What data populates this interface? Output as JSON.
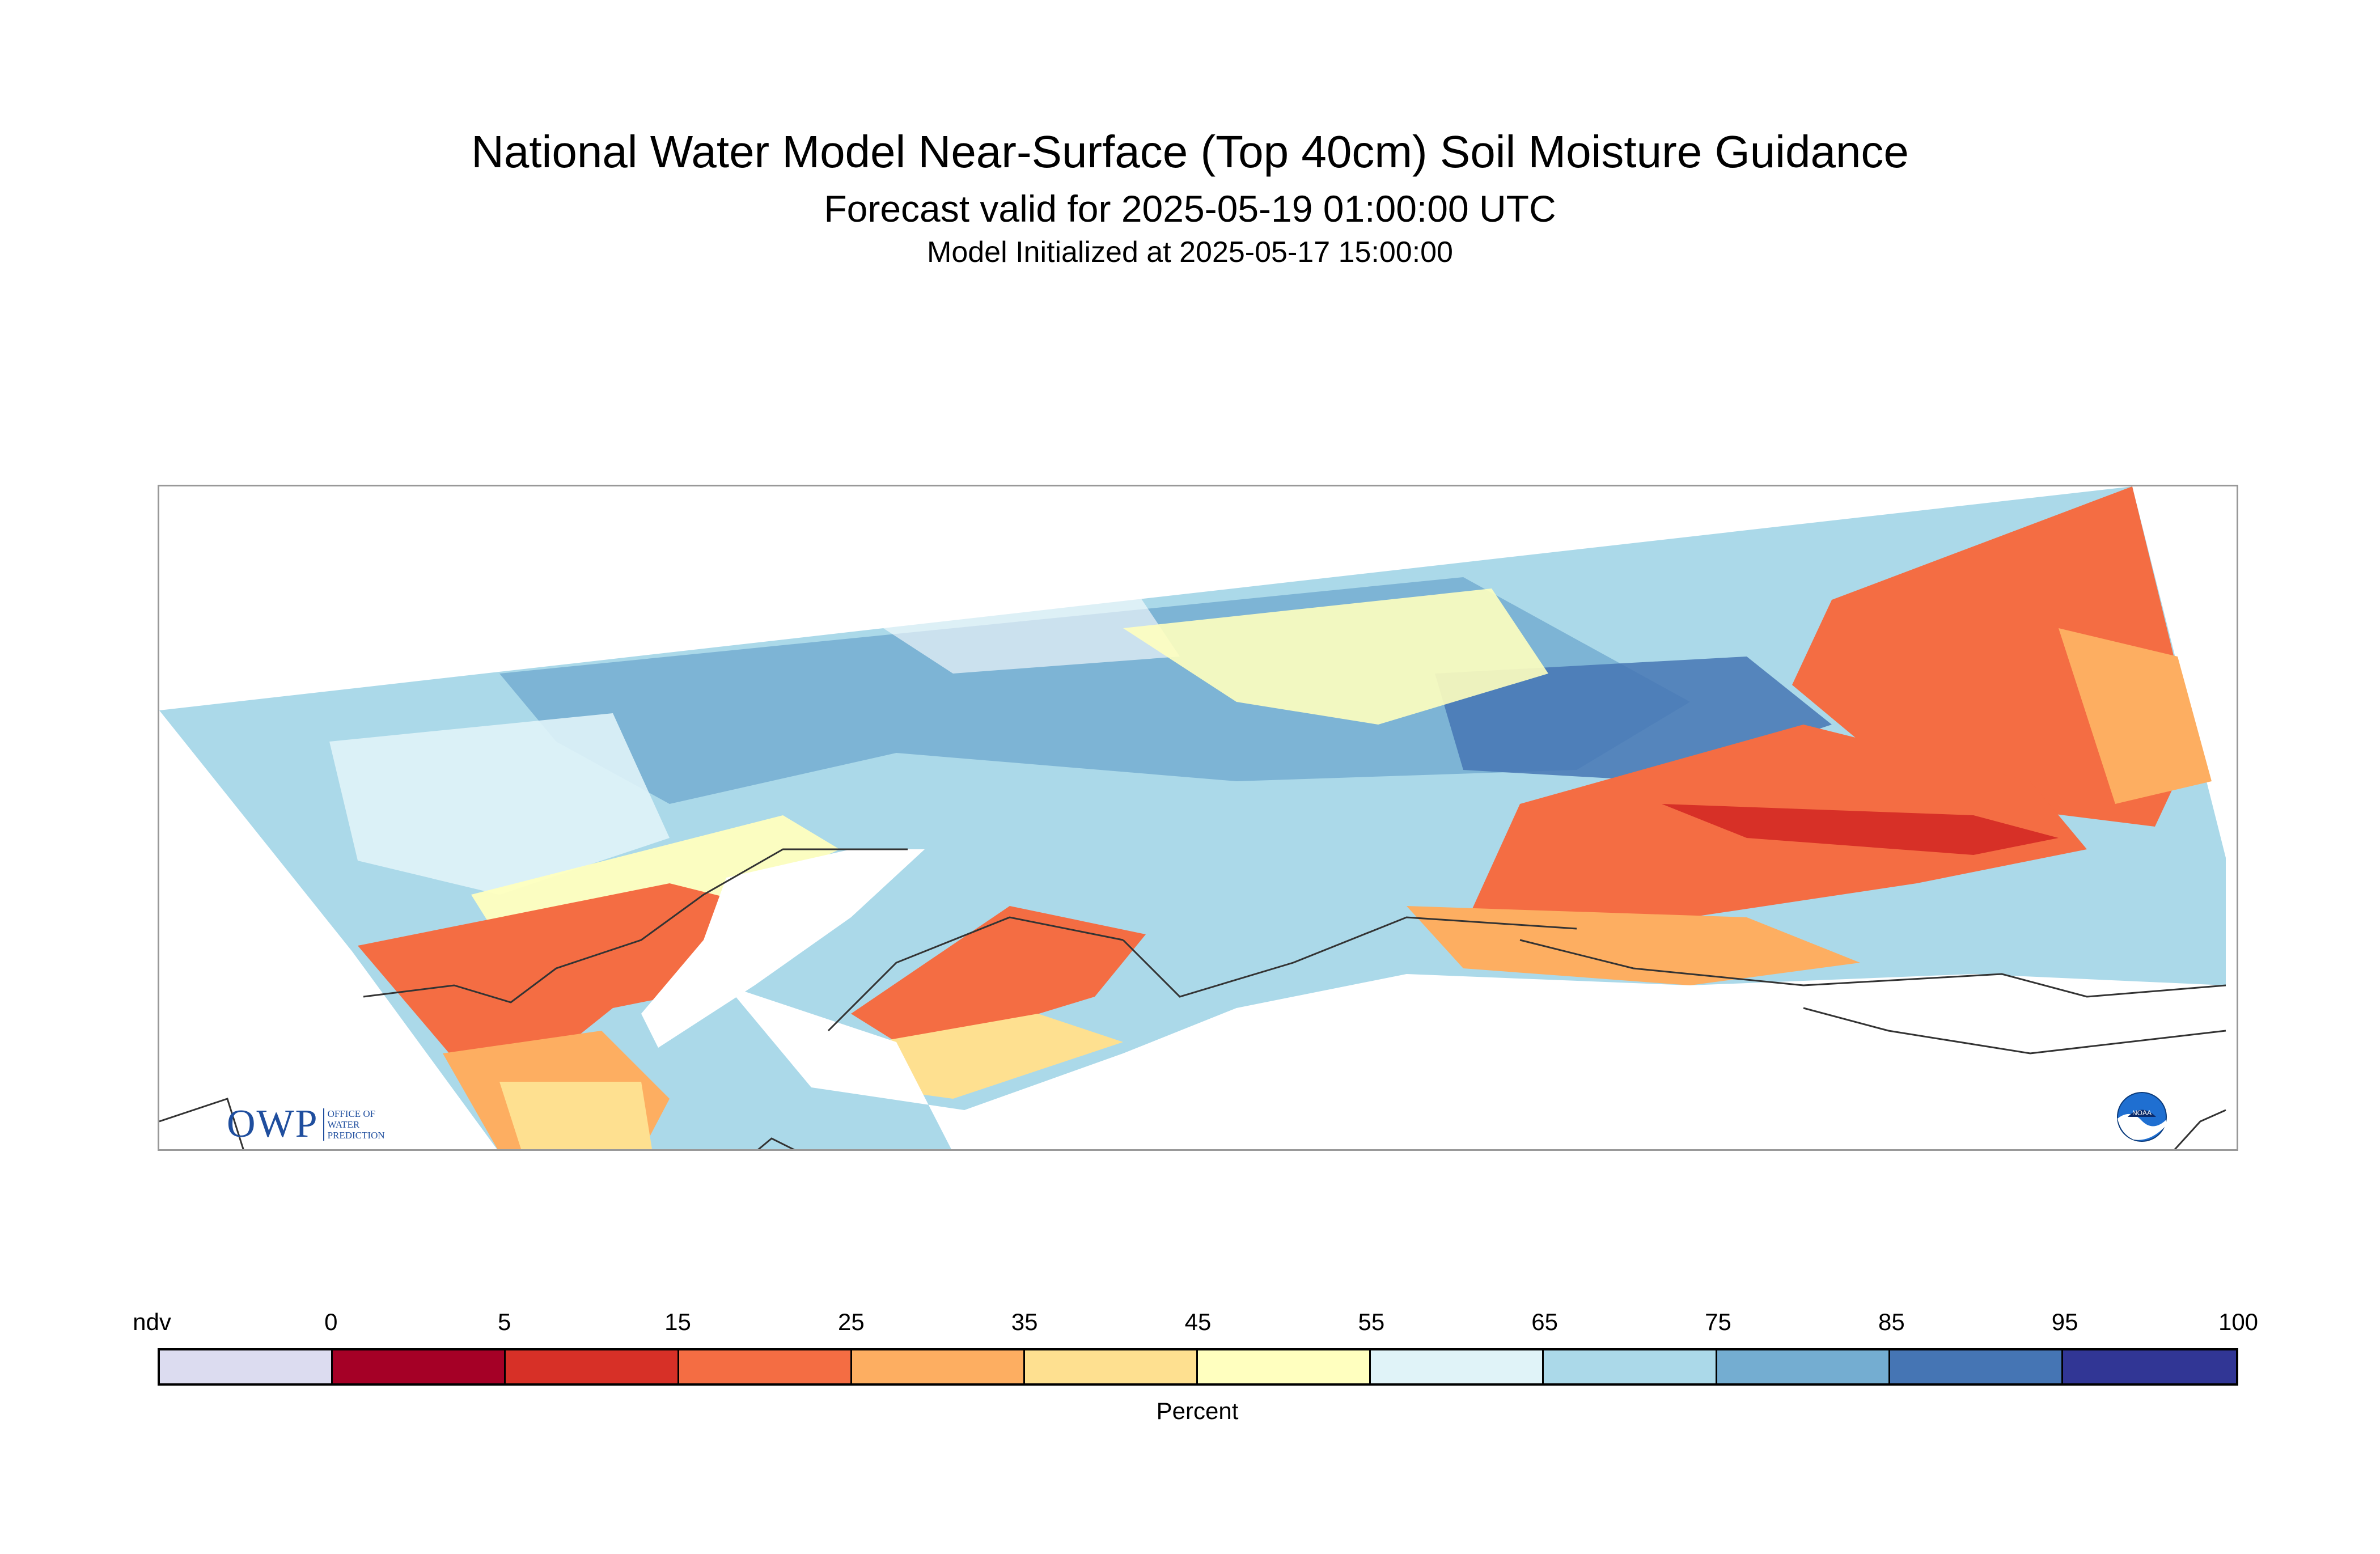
{
  "header": {
    "title": "National Water Model Near-Surface (Top 40cm) Soil Moisture Guidance",
    "subtitle": "Forecast valid for 2025-05-19 01:00:00 UTC",
    "init_line": "Model Initialized at 2025-05-17 15:00:00"
  },
  "logos": {
    "owp_letters": "OWP",
    "owp_words": [
      "Office of",
      "Water",
      "Prediction"
    ],
    "noaa_text": "NOAA"
  },
  "legend": {
    "unit_label": "Percent",
    "tick_labels": [
      "ndv",
      "0",
      "5",
      "15",
      "25",
      "35",
      "45",
      "55",
      "65",
      "75",
      "85",
      "95",
      "100"
    ],
    "bins": [
      {
        "label": "ndv",
        "color": "#dcdcf0"
      },
      {
        "label": "0-5",
        "color": "#a50026"
      },
      {
        "label": "5-15",
        "color": "#d73027"
      },
      {
        "label": "15-25",
        "color": "#f46d43"
      },
      {
        "label": "25-35",
        "color": "#fdae61"
      },
      {
        "label": "35-45",
        "color": "#fee090"
      },
      {
        "label": "45-55",
        "color": "#ffffbf"
      },
      {
        "label": "55-65",
        "color": "#e0f3f8"
      },
      {
        "label": "65-75",
        "color": "#abd9e9"
      },
      {
        "label": "75-85",
        "color": "#74add1"
      },
      {
        "label": "85-95",
        "color": "#4575b4"
      },
      {
        "label": "95-100",
        "color": "#313695"
      }
    ]
  }
}
